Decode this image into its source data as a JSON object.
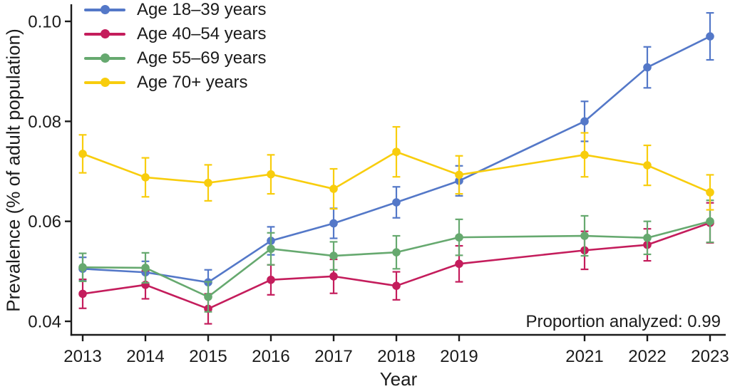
{
  "figure": {
    "background": "#ffffff",
    "text_color": "#1b1b1b",
    "axis_color": "#1b1b1b"
  },
  "chart_data": {
    "type": "line",
    "xlabel": "Year",
    "ylabel": "Prevalence (% of adult population)",
    "annotation": "Proportion analyzed: 0.99",
    "legend_position": "top-left",
    "grid": false,
    "error_bars": true,
    "x": [
      2013,
      2014,
      2015,
      2016,
      2017,
      2018,
      2019,
      2021,
      2022,
      2023
    ],
    "x_note": "no data shown for 2020; gap preserved on axis",
    "y_ticks": [
      0.04,
      0.06,
      0.08,
      0.1
    ],
    "ylim": [
      0.037,
      0.103
    ],
    "xlim": [
      2012.8,
      2023.3
    ],
    "series": [
      {
        "name": "Age 18–39 years",
        "color": "#5478C8",
        "values": [
          0.0505,
          0.0498,
          0.0478,
          0.0561,
          0.0596,
          0.0638,
          0.0681,
          0.08,
          0.0908,
          0.097
        ],
        "errors": [
          0.0023,
          0.0022,
          0.0025,
          0.0028,
          0.003,
          0.0031,
          0.003,
          0.004,
          0.0041,
          0.0047
        ]
      },
      {
        "name": "Age 40–54 years",
        "color": "#C41D5C",
        "values": [
          0.0455,
          0.0473,
          0.0425,
          0.0483,
          0.049,
          0.0471,
          0.0515,
          0.0542,
          0.0553,
          0.0597
        ],
        "errors": [
          0.0029,
          0.0028,
          0.003,
          0.003,
          0.0034,
          0.0028,
          0.0036,
          0.0038,
          0.0032,
          0.004
        ]
      },
      {
        "name": "Age 55–69 years",
        "color": "#66A96F",
        "values": [
          0.0508,
          0.0507,
          0.0449,
          0.0545,
          0.0531,
          0.0538,
          0.0568,
          0.0571,
          0.0567,
          0.06
        ],
        "errors": [
          0.0028,
          0.003,
          0.003,
          0.0032,
          0.0028,
          0.0033,
          0.0036,
          0.004,
          0.0033,
          0.0042
        ]
      },
      {
        "name": "Age 70+ years",
        "color": "#F8CD0D",
        "values": [
          0.0735,
          0.0688,
          0.0677,
          0.0694,
          0.0665,
          0.0739,
          0.0693,
          0.0733,
          0.0712,
          0.0658
        ],
        "errors": [
          0.0038,
          0.0039,
          0.0036,
          0.0039,
          0.004,
          0.005,
          0.0038,
          0.0044,
          0.004,
          0.0035
        ]
      }
    ]
  }
}
